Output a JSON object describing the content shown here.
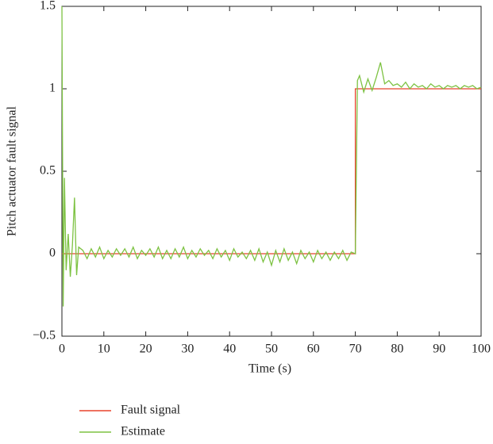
{
  "chart_data": {
    "type": "line",
    "xlabel": "Time (s)",
    "ylabel": "Pitch actuator fault signal",
    "xlim": [
      0,
      100
    ],
    "ylim": [
      -0.5,
      1.5
    ],
    "xticks": [
      0,
      10,
      20,
      30,
      40,
      50,
      60,
      70,
      80,
      90,
      100
    ],
    "yticks": [
      {
        "value": -0.5,
        "label": "−0.5"
      },
      0,
      0.5,
      1,
      1.5
    ],
    "grid": false,
    "legend": "bottom-left",
    "series": [
      {
        "name": "Fault signal",
        "color": "#e8442c",
        "x": [
          0,
          70,
          70,
          100
        ],
        "values": [
          0,
          0,
          1,
          1
        ]
      },
      {
        "name": "Estimate",
        "color": "#7dc242",
        "x": [
          0,
          0.3,
          0.6,
          1,
          1.5,
          2,
          2.5,
          3,
          3.5,
          4,
          5,
          6,
          7,
          8,
          9,
          10,
          11,
          12,
          13,
          14,
          15,
          16,
          17,
          18,
          19,
          20,
          21,
          22,
          23,
          24,
          25,
          26,
          27,
          28,
          29,
          30,
          31,
          32,
          33,
          34,
          35,
          36,
          37,
          38,
          39,
          40,
          41,
          42,
          43,
          44,
          45,
          46,
          47,
          48,
          49,
          50,
          51,
          52,
          53,
          54,
          55,
          56,
          57,
          58,
          59,
          60,
          61,
          62,
          63,
          64,
          65,
          66,
          67,
          68,
          69,
          70,
          70.5,
          71,
          72,
          73,
          74,
          75,
          76,
          77,
          78,
          79,
          80,
          81,
          82,
          83,
          84,
          85,
          86,
          87,
          88,
          89,
          90,
          91,
          92,
          93,
          94,
          95,
          96,
          97,
          98,
          99,
          100
        ],
        "values": [
          1.5,
          -0.32,
          0.46,
          -0.1,
          0.12,
          -0.14,
          0.05,
          0.34,
          -0.13,
          0.04,
          0.02,
          -0.03,
          0.03,
          -0.02,
          0.04,
          -0.03,
          0.02,
          -0.02,
          0.03,
          -0.01,
          0.03,
          -0.02,
          0.04,
          -0.03,
          0.02,
          -0.01,
          0.03,
          -0.02,
          0.04,
          -0.03,
          0.02,
          -0.03,
          0.03,
          -0.02,
          0.04,
          -0.03,
          0.02,
          -0.02,
          0.03,
          -0.01,
          0.02,
          -0.03,
          0.03,
          -0.02,
          0.02,
          -0.04,
          0.03,
          -0.02,
          0.01,
          -0.03,
          0.02,
          -0.04,
          0.03,
          -0.05,
          0.01,
          -0.07,
          0.02,
          -0.05,
          0.03,
          -0.04,
          0.01,
          -0.06,
          0.02,
          -0.03,
          0.01,
          -0.05,
          0.02,
          -0.03,
          0.01,
          -0.04,
          0.01,
          -0.03,
          0.02,
          -0.04,
          0.01,
          0.0,
          1.05,
          1.08,
          0.98,
          1.06,
          0.99,
          1.07,
          1.16,
          1.03,
          1.05,
          1.02,
          1.03,
          1.01,
          1.04,
          1.0,
          1.03,
          1.01,
          1.02,
          1.0,
          1.03,
          1.01,
          1.02,
          1.0,
          1.02,
          1.01,
          1.02,
          1.0,
          1.02,
          1.01,
          1.02,
          1.0,
          1.01
        ]
      }
    ]
  }
}
